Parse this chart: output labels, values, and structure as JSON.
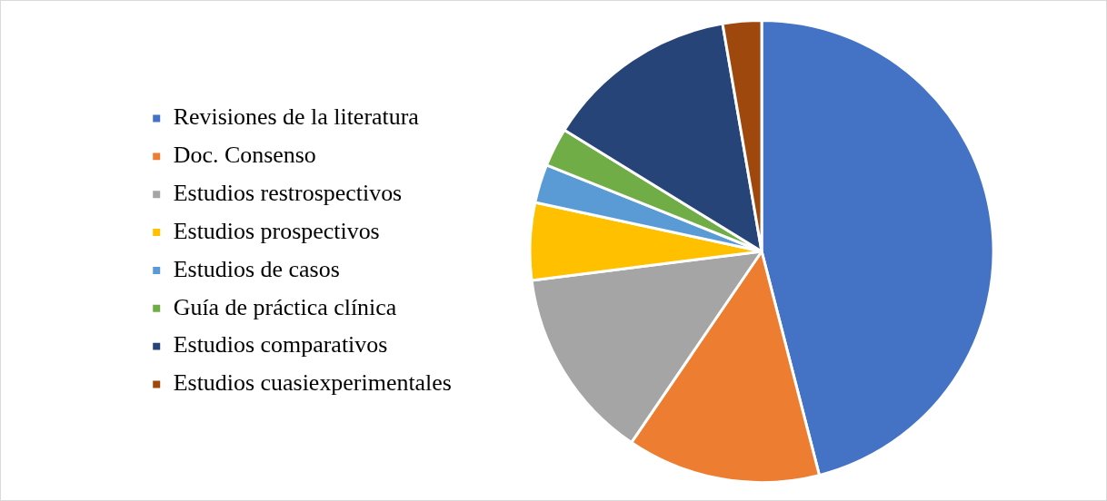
{
  "chart_data": {
    "type": "pie",
    "categories": [
      "Revisiones de la literatura",
      "Doc. Consenso",
      "Estudios restrospectivos",
      "Estudios prospectivos",
      "Estudios de casos",
      "Guía de práctica clínica",
      "Estudios comparativos",
      "Estudios cuasiexperimentales"
    ],
    "values": [
      46,
      13.5,
      13.5,
      5.4,
      2.7,
      2.7,
      13.5,
      2.7
    ],
    "colors": [
      "#4472c4",
      "#ed7d31",
      "#a5a5a5",
      "#ffc000",
      "#5b9bd5",
      "#70ad47",
      "#264478",
      "#9e480e"
    ],
    "legend": "left"
  }
}
